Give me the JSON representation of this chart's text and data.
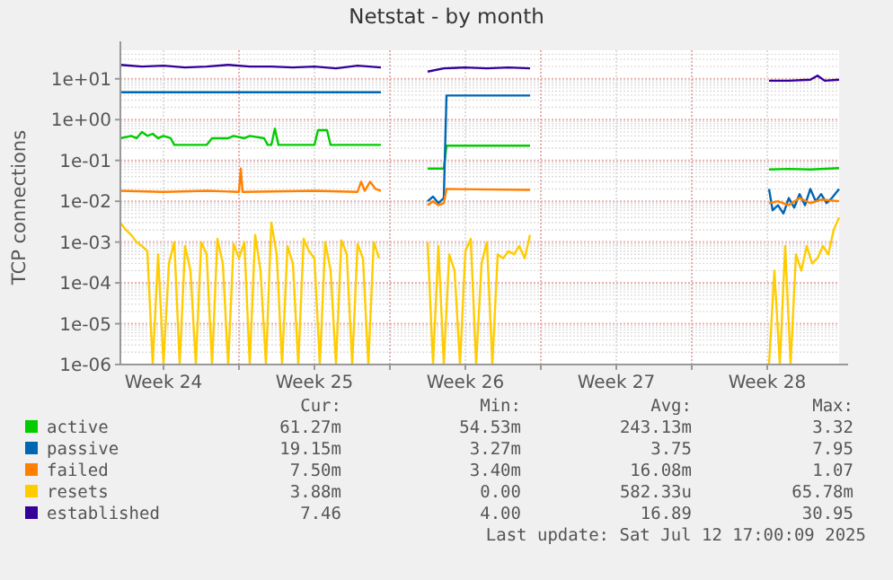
{
  "chart_data": {
    "type": "line",
    "title": "Netstat - by month",
    "ylabel": "TCP connections",
    "log": true,
    "grid": true,
    "legend": "bottom",
    "line_style": "solid",
    "xlim": [
      "2025-06-10T12:00",
      "2025-07-13T20:00"
    ],
    "xticks": [
      {
        "value": "2025-06-12T12:00",
        "label": "Week 24"
      },
      {
        "value": "2025-06-16T00:00",
        "label": null
      },
      {
        "value": "2025-06-19T12:00",
        "label": "Week 25"
      },
      {
        "value": "2025-06-23T00:00",
        "label": null
      },
      {
        "value": "2025-06-26T12:00",
        "label": "Week 26"
      },
      {
        "value": "2025-06-30T00:00",
        "label": null
      },
      {
        "value": "2025-07-03T12:00",
        "label": "Week 27"
      },
      {
        "value": "2025-07-07T00:00",
        "label": null
      },
      {
        "value": "2025-07-10T12:00",
        "label": "Week 28"
      }
    ],
    "ylim": [
      1e-06,
      50
    ],
    "yticks": [
      {
        "value": 10,
        "label": "1e+01"
      },
      {
        "value": 1,
        "label": "1e+00"
      },
      {
        "value": 0.1,
        "label": "1e-01"
      },
      {
        "value": 0.01,
        "label": "1e-02"
      },
      {
        "value": 0.001,
        "label": "1e-03"
      },
      {
        "value": 0.0001,
        "label": "1e-04"
      },
      {
        "value": 1e-05,
        "label": "1e-05"
      },
      {
        "value": 1e-06,
        "label": "1e-06"
      }
    ],
    "series": [
      {
        "name": "active",
        "color": "#00cc00",
        "x": [
          "2025-06-10T12:00",
          "2025-06-11T00:00",
          "2025-06-11T06:00",
          "2025-06-11T12:00",
          "2025-06-11T18:00",
          "2025-06-12T00:00",
          "2025-06-12T06:00",
          "2025-06-12T12:00",
          "2025-06-12T20:00",
          "2025-06-13T00:00",
          "2025-06-14T12:00",
          "2025-06-14T18:00",
          "2025-06-15T12:00",
          "2025-06-15T18:00",
          "2025-06-16T06:00",
          "2025-06-16T12:00",
          "2025-06-17T04:00",
          "2025-06-17T08:00",
          "2025-06-17T12:00",
          "2025-06-17T16:00",
          "2025-06-17T20:00",
          "2025-06-19T12:00",
          "2025-06-19T16:00",
          "2025-06-20T02:00",
          "2025-06-20T06:00",
          "2025-06-21T12:00",
          "2025-06-22T14:00",
          "2025-06-23T16:00",
          "2025-06-24T18:00",
          "2025-06-25T12:00",
          "2025-06-25T15:00",
          "2025-06-29T12:00",
          "2025-07-05T00:00",
          "2025-07-10T14:00",
          "2025-07-11T12:00",
          "2025-07-12T12:00",
          "2025-07-13T20:00"
        ],
        "values": [
          0.35,
          0.4,
          0.35,
          0.5,
          0.4,
          0.45,
          0.35,
          0.4,
          0.35,
          0.24,
          0.24,
          0.35,
          0.35,
          0.4,
          0.35,
          0.4,
          0.35,
          0.24,
          0.24,
          0.6,
          0.24,
          0.24,
          0.55,
          0.55,
          0.24,
          0.24,
          0.24,
          null,
          0.063,
          0.063,
          0.23,
          0.23,
          null,
          0.06,
          0.062,
          0.06,
          0.065
        ]
      },
      {
        "name": "passive",
        "color": "#0066b3",
        "x": [
          "2025-06-10T12:00",
          "2025-06-22T14:00",
          "2025-06-23T16:00",
          "2025-06-24T18:00",
          "2025-06-25T00:00",
          "2025-06-25T06:00",
          "2025-06-25T12:00",
          "2025-06-25T15:00",
          "2025-06-29T12:00",
          "2025-07-05T00:00",
          "2025-07-10T14:00",
          "2025-07-10T18:00",
          "2025-07-11T00:00",
          "2025-07-11T06:00",
          "2025-07-11T12:00",
          "2025-07-11T18:00",
          "2025-07-12T00:00",
          "2025-07-12T06:00",
          "2025-07-12T12:00",
          "2025-07-12T18:00",
          "2025-07-13T00:00",
          "2025-07-13T06:00",
          "2025-07-13T12:00",
          "2025-07-13T20:00"
        ],
        "values": [
          4.7,
          4.7,
          null,
          0.01,
          0.013,
          0.009,
          0.012,
          3.9,
          3.9,
          null,
          0.02,
          0.006,
          0.008,
          0.005,
          0.012,
          0.007,
          0.015,
          0.008,
          0.02,
          0.01,
          0.015,
          0.009,
          0.012,
          0.02
        ]
      },
      {
        "name": "failed",
        "color": "#ff8000",
        "x": [
          "2025-06-10T12:00",
          "2025-06-12T12:00",
          "2025-06-14T12:00",
          "2025-06-16T00:00",
          "2025-06-16T02:00",
          "2025-06-16T04:00",
          "2025-06-19T12:00",
          "2025-06-21T12:00",
          "2025-06-21T16:00",
          "2025-06-21T20:00",
          "2025-06-22T02:00",
          "2025-06-22T08:00",
          "2025-06-22T14:00",
          "2025-06-23T16:00",
          "2025-06-24T18:00",
          "2025-06-25T00:00",
          "2025-06-25T06:00",
          "2025-06-25T12:00",
          "2025-06-25T15:00",
          "2025-06-29T12:00",
          "2025-07-05T00:00",
          "2025-07-10T14:00",
          "2025-07-11T00:00",
          "2025-07-11T12:00",
          "2025-07-12T00:00",
          "2025-07-12T12:00",
          "2025-07-13T00:00",
          "2025-07-13T20:00"
        ],
        "values": [
          0.018,
          0.017,
          0.018,
          0.017,
          0.063,
          0.017,
          0.018,
          0.017,
          0.03,
          0.018,
          0.03,
          0.02,
          0.018,
          null,
          0.008,
          0.01,
          0.008,
          0.009,
          0.02,
          0.019,
          null,
          0.009,
          0.01,
          0.008,
          0.012,
          0.009,
          0.011,
          0.01
        ]
      },
      {
        "name": "resets",
        "color": "#ffcc00",
        "x": [
          "2025-06-10T12:00",
          "2025-06-10T18:00",
          "2025-06-11T00:00",
          "2025-06-11T06:00",
          "2025-06-11T12:00",
          "2025-06-11T18:00",
          "2025-06-12T00:00",
          "2025-06-12T06:00",
          "2025-06-12T12:00",
          "2025-06-12T18:00",
          "2025-06-13T00:00",
          "2025-06-13T06:00",
          "2025-06-13T12:00",
          "2025-06-13T18:00",
          "2025-06-14T00:00",
          "2025-06-14T06:00",
          "2025-06-14T12:00",
          "2025-06-14T18:00",
          "2025-06-15T00:00",
          "2025-06-15T06:00",
          "2025-06-15T12:00",
          "2025-06-15T18:00",
          "2025-06-16T00:00",
          "2025-06-16T06:00",
          "2025-06-16T12:00",
          "2025-06-16T18:00",
          "2025-06-17T00:00",
          "2025-06-17T06:00",
          "2025-06-17T12:00",
          "2025-06-17T18:00",
          "2025-06-18T00:00",
          "2025-06-18T06:00",
          "2025-06-18T12:00",
          "2025-06-18T18:00",
          "2025-06-19T00:00",
          "2025-06-19T06:00",
          "2025-06-19T12:00",
          "2025-06-19T18:00",
          "2025-06-20T00:00",
          "2025-06-20T06:00",
          "2025-06-20T12:00",
          "2025-06-20T18:00",
          "2025-06-21T00:00",
          "2025-06-21T06:00",
          "2025-06-21T12:00",
          "2025-06-21T18:00",
          "2025-06-22T00:00",
          "2025-06-22T06:00",
          "2025-06-22T12:00",
          "2025-06-23T16:00",
          "2025-06-24T18:00",
          "2025-06-25T00:00",
          "2025-06-25T06:00",
          "2025-06-25T12:00",
          "2025-06-25T18:00",
          "2025-06-26T00:00",
          "2025-06-26T06:00",
          "2025-06-26T12:00",
          "2025-06-26T18:00",
          "2025-06-27T00:00",
          "2025-06-27T06:00",
          "2025-06-27T12:00",
          "2025-06-27T18:00",
          "2025-06-28T00:00",
          "2025-06-28T06:00",
          "2025-06-28T12:00",
          "2025-06-28T18:00",
          "2025-06-29T00:00",
          "2025-06-29T06:00",
          "2025-06-29T12:00",
          "2025-07-05T00:00",
          "2025-07-10T14:00",
          "2025-07-10T20:00",
          "2025-07-11T02:00",
          "2025-07-11T08:00",
          "2025-07-11T14:00",
          "2025-07-11T20:00",
          "2025-07-12T02:00",
          "2025-07-12T08:00",
          "2025-07-12T14:00",
          "2025-07-12T20:00",
          "2025-07-13T02:00",
          "2025-07-13T08:00",
          "2025-07-13T14:00",
          "2025-07-13T20:00"
        ],
        "values": [
          0.003,
          0.002,
          0.0015,
          0.001,
          0.0008,
          0.0006,
          1e-06,
          0.0005,
          1e-06,
          0.0003,
          0.001,
          1e-06,
          0.0008,
          0.0002,
          1e-06,
          0.001,
          0.0005,
          1e-06,
          0.0012,
          0.0003,
          1e-06,
          0.0009,
          0.0004,
          0.001,
          1e-06,
          0.0015,
          0.0002,
          1e-06,
          0.003,
          0.0005,
          1e-06,
          0.0008,
          0.0003,
          1e-06,
          0.0012,
          0.0006,
          0.0004,
          1e-06,
          0.001,
          0.0002,
          1e-06,
          0.0011,
          0.0005,
          1e-06,
          0.0009,
          0.0004,
          1e-06,
          0.001,
          0.0004,
          null,
          0.001,
          1e-06,
          0.0008,
          1e-06,
          0.0005,
          0.0002,
          1e-06,
          0.0006,
          0.0012,
          1e-06,
          0.0003,
          0.001,
          1e-06,
          0.0005,
          0.0004,
          0.0006,
          0.0005,
          0.0008,
          0.0004,
          0.0015,
          null,
          1e-06,
          0.0002,
          1e-06,
          0.0008,
          1e-06,
          0.0005,
          0.0002,
          0.0008,
          0.0003,
          0.0004,
          0.0008,
          0.0005,
          0.002,
          0.004
        ]
      },
      {
        "name": "established",
        "color": "#330099",
        "x": [
          "2025-06-10T12:00",
          "2025-06-11T12:00",
          "2025-06-12T12:00",
          "2025-06-13T12:00",
          "2025-06-14T12:00",
          "2025-06-15T12:00",
          "2025-06-16T12:00",
          "2025-06-17T12:00",
          "2025-06-18T12:00",
          "2025-06-19T12:00",
          "2025-06-20T12:00",
          "2025-06-21T12:00",
          "2025-06-22T14:00",
          "2025-06-23T16:00",
          "2025-06-24T18:00",
          "2025-06-25T12:00",
          "2025-06-26T12:00",
          "2025-06-27T12:00",
          "2025-06-28T12:00",
          "2025-06-29T12:00",
          "2025-07-05T00:00",
          "2025-07-10T14:00",
          "2025-07-11T12:00",
          "2025-07-12T12:00",
          "2025-07-12T20:00",
          "2025-07-13T04:00",
          "2025-07-13T20:00"
        ],
        "values": [
          22,
          20,
          21,
          19,
          20,
          22,
          20,
          20,
          19,
          20,
          18,
          21,
          19,
          null,
          15,
          18,
          19,
          18,
          19,
          18,
          null,
          9,
          9,
          9.5,
          12,
          9,
          9.5
        ]
      }
    ],
    "annotations": [
      "Cur:",
      "Min:",
      "Avg:",
      "Max:",
      "61.27m",
      "54.53m",
      "243.13m",
      "3.32",
      "19.15m",
      "3.27m",
      "3.75",
      "7.95",
      "7.50m",
      "3.40m",
      "16.08m",
      "1.07",
      "3.88m",
      "0.00",
      "582.33u",
      "65.78m",
      "7.46",
      "4.00",
      "16.89",
      "30.95",
      "Last update: Sat Jul 12 17:00:09 2025"
    ]
  }
}
